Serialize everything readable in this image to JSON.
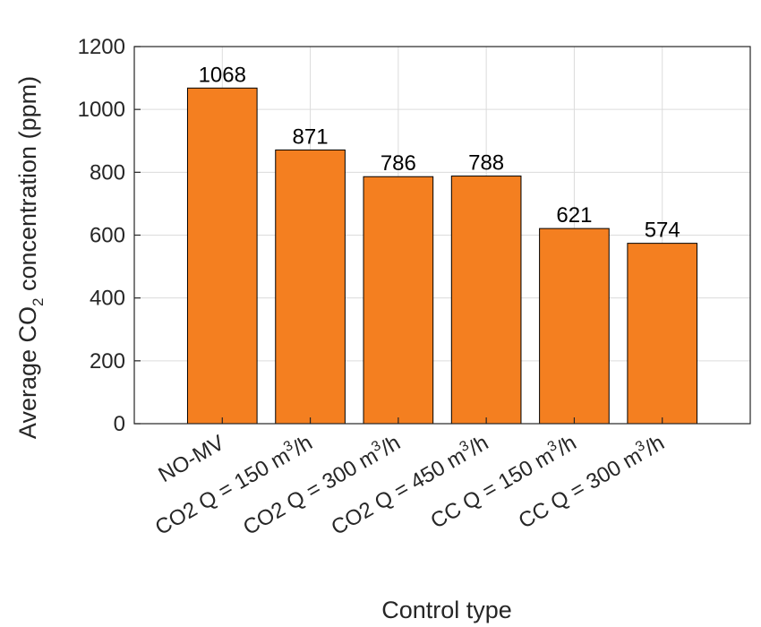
{
  "chart_data": {
    "type": "bar",
    "categories": [
      {
        "pre": "NO-MV",
        "sup": "",
        "post": ""
      },
      {
        "pre": "CO2 Q = 150 m",
        "sup": "3",
        "post": "/h"
      },
      {
        "pre": "CO2 Q = 300 m",
        "sup": "3",
        "post": "/h"
      },
      {
        "pre": "CO2 Q = 450 m",
        "sup": "3",
        "post": "/h"
      },
      {
        "pre": "CC Q = 150 m",
        "sup": "3",
        "post": "/h"
      },
      {
        "pre": "CC Q = 300 m",
        "sup": "3",
        "post": "/h"
      }
    ],
    "values": [
      1068,
      871,
      786,
      788,
      621,
      574
    ],
    "data_labels": [
      "1068",
      "871",
      "786",
      "788",
      "621",
      "574"
    ],
    "xlabel": "Control type",
    "ylabel": {
      "pre": "Average CO",
      "sub": "2",
      "post": " concentration (ppm)"
    },
    "ylim": [
      0,
      1200
    ],
    "yticks": [
      0,
      200,
      400,
      600,
      800,
      1000,
      1200
    ],
    "grid": true,
    "bar_color": "#F47F20",
    "bar_edge_color": "#000000",
    "grid_color": "#dcdcdc",
    "axis_color": "#262626"
  }
}
